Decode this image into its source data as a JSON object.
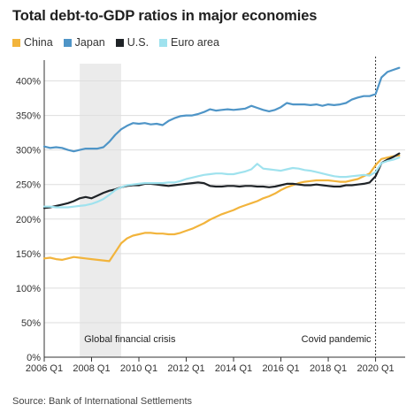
{
  "title": "Total debt-to-GDP ratios in major economies",
  "source": "Source: Bank of International Settlements",
  "chart_data": {
    "type": "line",
    "title": "Total debt-to-GDP ratios in major economies",
    "xlabel": "",
    "ylabel": "",
    "ylim": [
      0,
      425
    ],
    "xlim": [
      2006.0,
      2021.25
    ],
    "y_ticks": [
      0,
      50,
      100,
      150,
      200,
      250,
      300,
      350,
      400
    ],
    "y_tick_labels": [
      "0%",
      "50%",
      "100%",
      "150%",
      "200%",
      "250%",
      "300%",
      "350%",
      "400%"
    ],
    "x_ticks": [
      2006,
      2008,
      2010,
      2012,
      2014,
      2016,
      2018,
      2020
    ],
    "x_tick_labels": [
      "2006 Q1",
      "2008 Q1",
      "2010 Q1",
      "2012 Q1",
      "2014 Q1",
      "2016 Q1",
      "2018 Q1",
      "2020 Q1"
    ],
    "grid": true,
    "legend_position": "top-left",
    "annotations": [
      {
        "type": "band",
        "x_start": 2007.5,
        "x_end": 2009.25,
        "label": "Global financial crisis",
        "color": "#ebebeb"
      },
      {
        "type": "vline",
        "x": 2020.0,
        "label": "Covid pandemic",
        "style": "dashed"
      }
    ],
    "series": [
      {
        "name": "China",
        "color": "#f2b43c",
        "points": [
          [
            2006.0,
            143
          ],
          [
            2006.25,
            144
          ],
          [
            2006.5,
            142
          ],
          [
            2006.75,
            141
          ],
          [
            2007.0,
            143
          ],
          [
            2007.25,
            145
          ],
          [
            2007.5,
            144
          ],
          [
            2007.75,
            143
          ],
          [
            2008.0,
            142
          ],
          [
            2008.25,
            141
          ],
          [
            2008.5,
            140
          ],
          [
            2008.75,
            139
          ],
          [
            2009.0,
            152
          ],
          [
            2009.25,
            165
          ],
          [
            2009.5,
            172
          ],
          [
            2009.75,
            176
          ],
          [
            2010.0,
            178
          ],
          [
            2010.25,
            180
          ],
          [
            2010.5,
            180
          ],
          [
            2010.75,
            179
          ],
          [
            2011.0,
            179
          ],
          [
            2011.25,
            178
          ],
          [
            2011.5,
            178
          ],
          [
            2011.75,
            180
          ],
          [
            2012.0,
            183
          ],
          [
            2012.25,
            186
          ],
          [
            2012.5,
            190
          ],
          [
            2012.75,
            194
          ],
          [
            2013.0,
            199
          ],
          [
            2013.25,
            203
          ],
          [
            2013.5,
            207
          ],
          [
            2013.75,
            210
          ],
          [
            2014.0,
            213
          ],
          [
            2014.25,
            217
          ],
          [
            2014.5,
            220
          ],
          [
            2014.75,
            223
          ],
          [
            2015.0,
            226
          ],
          [
            2015.25,
            230
          ],
          [
            2015.5,
            233
          ],
          [
            2015.75,
            237
          ],
          [
            2016.0,
            242
          ],
          [
            2016.25,
            246
          ],
          [
            2016.5,
            249
          ],
          [
            2016.75,
            252
          ],
          [
            2017.0,
            254
          ],
          [
            2017.25,
            255
          ],
          [
            2017.5,
            256
          ],
          [
            2017.75,
            256
          ],
          [
            2018.0,
            256
          ],
          [
            2018.25,
            255
          ],
          [
            2018.5,
            254
          ],
          [
            2018.75,
            254
          ],
          [
            2019.0,
            256
          ],
          [
            2019.25,
            258
          ],
          [
            2019.5,
            262
          ],
          [
            2019.75,
            266
          ],
          [
            2020.0,
            278
          ],
          [
            2020.25,
            287
          ],
          [
            2020.5,
            289
          ],
          [
            2020.75,
            291
          ],
          [
            2021.0,
            292
          ]
        ]
      },
      {
        "name": "Japan",
        "color": "#4f95c7",
        "points": [
          [
            2006.0,
            305
          ],
          [
            2006.25,
            303
          ],
          [
            2006.5,
            304
          ],
          [
            2006.75,
            303
          ],
          [
            2007.0,
            300
          ],
          [
            2007.25,
            298
          ],
          [
            2007.5,
            300
          ],
          [
            2007.75,
            302
          ],
          [
            2008.0,
            302
          ],
          [
            2008.25,
            302
          ],
          [
            2008.5,
            304
          ],
          [
            2008.75,
            312
          ],
          [
            2009.0,
            322
          ],
          [
            2009.25,
            330
          ],
          [
            2009.5,
            335
          ],
          [
            2009.75,
            339
          ],
          [
            2010.0,
            338
          ],
          [
            2010.25,
            339
          ],
          [
            2010.5,
            337
          ],
          [
            2010.75,
            338
          ],
          [
            2011.0,
            336
          ],
          [
            2011.25,
            342
          ],
          [
            2011.5,
            346
          ],
          [
            2011.75,
            349
          ],
          [
            2012.0,
            350
          ],
          [
            2012.25,
            350
          ],
          [
            2012.5,
            352
          ],
          [
            2012.75,
            355
          ],
          [
            2013.0,
            359
          ],
          [
            2013.25,
            357
          ],
          [
            2013.5,
            358
          ],
          [
            2013.75,
            359
          ],
          [
            2014.0,
            358
          ],
          [
            2014.25,
            359
          ],
          [
            2014.5,
            360
          ],
          [
            2014.75,
            364
          ],
          [
            2015.0,
            361
          ],
          [
            2015.25,
            358
          ],
          [
            2015.5,
            356
          ],
          [
            2015.75,
            358
          ],
          [
            2016.0,
            362
          ],
          [
            2016.25,
            368
          ],
          [
            2016.5,
            366
          ],
          [
            2016.75,
            366
          ],
          [
            2017.0,
            366
          ],
          [
            2017.25,
            365
          ],
          [
            2017.5,
            366
          ],
          [
            2017.75,
            364
          ],
          [
            2018.0,
            366
          ],
          [
            2018.25,
            365
          ],
          [
            2018.5,
            366
          ],
          [
            2018.75,
            368
          ],
          [
            2019.0,
            373
          ],
          [
            2019.25,
            376
          ],
          [
            2019.5,
            378
          ],
          [
            2019.75,
            378
          ],
          [
            2020.0,
            381
          ],
          [
            2020.25,
            405
          ],
          [
            2020.5,
            413
          ],
          [
            2020.75,
            416
          ],
          [
            2021.0,
            419
          ]
        ]
      },
      {
        "name": "U.S.",
        "color": "#1f2327",
        "points": [
          [
            2006.0,
            216
          ],
          [
            2006.25,
            217
          ],
          [
            2006.5,
            219
          ],
          [
            2006.75,
            221
          ],
          [
            2007.0,
            223
          ],
          [
            2007.25,
            226
          ],
          [
            2007.5,
            230
          ],
          [
            2007.75,
            232
          ],
          [
            2008.0,
            230
          ],
          [
            2008.25,
            234
          ],
          [
            2008.5,
            238
          ],
          [
            2008.75,
            241
          ],
          [
            2009.0,
            243
          ],
          [
            2009.25,
            246
          ],
          [
            2009.5,
            248
          ],
          [
            2009.75,
            249
          ],
          [
            2010.0,
            249
          ],
          [
            2010.25,
            251
          ],
          [
            2010.5,
            251
          ],
          [
            2010.75,
            250
          ],
          [
            2011.0,
            249
          ],
          [
            2011.25,
            248
          ],
          [
            2011.5,
            249
          ],
          [
            2011.75,
            250
          ],
          [
            2012.0,
            251
          ],
          [
            2012.25,
            252
          ],
          [
            2012.5,
            253
          ],
          [
            2012.75,
            252
          ],
          [
            2013.0,
            248
          ],
          [
            2013.25,
            247
          ],
          [
            2013.5,
            247
          ],
          [
            2013.75,
            248
          ],
          [
            2014.0,
            248
          ],
          [
            2014.25,
            247
          ],
          [
            2014.5,
            248
          ],
          [
            2014.75,
            248
          ],
          [
            2015.0,
            247
          ],
          [
            2015.25,
            247
          ],
          [
            2015.5,
            246
          ],
          [
            2015.75,
            247
          ],
          [
            2016.0,
            249
          ],
          [
            2016.25,
            251
          ],
          [
            2016.5,
            251
          ],
          [
            2016.75,
            250
          ],
          [
            2017.0,
            249
          ],
          [
            2017.25,
            249
          ],
          [
            2017.5,
            250
          ],
          [
            2017.75,
            249
          ],
          [
            2018.0,
            248
          ],
          [
            2018.25,
            247
          ],
          [
            2018.5,
            247
          ],
          [
            2018.75,
            249
          ],
          [
            2019.0,
            249
          ],
          [
            2019.25,
            250
          ],
          [
            2019.5,
            251
          ],
          [
            2019.75,
            253
          ],
          [
            2020.0,
            262
          ],
          [
            2020.25,
            281
          ],
          [
            2020.5,
            286
          ],
          [
            2020.75,
            290
          ],
          [
            2021.0,
            295
          ]
        ]
      },
      {
        "name": "Euro area",
        "color": "#9fe2ee",
        "points": [
          [
            2006.0,
            218
          ],
          [
            2006.25,
            218
          ],
          [
            2006.5,
            217
          ],
          [
            2006.75,
            217
          ],
          [
            2007.0,
            217
          ],
          [
            2007.25,
            218
          ],
          [
            2007.5,
            219
          ],
          [
            2007.75,
            220
          ],
          [
            2008.0,
            222
          ],
          [
            2008.25,
            225
          ],
          [
            2008.5,
            229
          ],
          [
            2008.75,
            235
          ],
          [
            2009.0,
            242
          ],
          [
            2009.25,
            246
          ],
          [
            2009.5,
            249
          ],
          [
            2009.75,
            250
          ],
          [
            2010.0,
            251
          ],
          [
            2010.25,
            252
          ],
          [
            2010.5,
            252
          ],
          [
            2010.75,
            252
          ],
          [
            2011.0,
            252
          ],
          [
            2011.25,
            253
          ],
          [
            2011.5,
            253
          ],
          [
            2011.75,
            255
          ],
          [
            2012.0,
            258
          ],
          [
            2012.25,
            260
          ],
          [
            2012.5,
            262
          ],
          [
            2012.75,
            264
          ],
          [
            2013.0,
            265
          ],
          [
            2013.25,
            266
          ],
          [
            2013.5,
            266
          ],
          [
            2013.75,
            265
          ],
          [
            2014.0,
            265
          ],
          [
            2014.25,
            267
          ],
          [
            2014.5,
            269
          ],
          [
            2014.75,
            272
          ],
          [
            2015.0,
            280
          ],
          [
            2015.25,
            273
          ],
          [
            2015.5,
            272
          ],
          [
            2015.75,
            271
          ],
          [
            2016.0,
            270
          ],
          [
            2016.25,
            272
          ],
          [
            2016.5,
            274
          ],
          [
            2016.75,
            273
          ],
          [
            2017.0,
            271
          ],
          [
            2017.25,
            270
          ],
          [
            2017.5,
            268
          ],
          [
            2017.75,
            266
          ],
          [
            2018.0,
            264
          ],
          [
            2018.25,
            262
          ],
          [
            2018.5,
            261
          ],
          [
            2018.75,
            261
          ],
          [
            2019.0,
            262
          ],
          [
            2019.25,
            263
          ],
          [
            2019.5,
            264
          ],
          [
            2019.75,
            263
          ],
          [
            2020.0,
            268
          ],
          [
            2020.25,
            281
          ],
          [
            2020.5,
            284
          ],
          [
            2020.75,
            286
          ],
          [
            2021.0,
            289
          ]
        ]
      }
    ]
  }
}
